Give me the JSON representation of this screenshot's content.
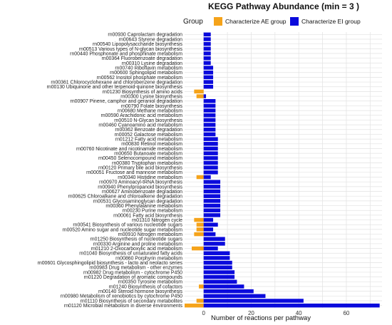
{
  "chart_data": {
    "type": "bar",
    "orientation": "horizontal-diverging",
    "title": "KEGG Pathway Abundance (min = 3 )",
    "xlabel": "Number of reactions per pathway",
    "ylabel": "",
    "xlim": [
      -8,
      75
    ],
    "xticks": [
      0,
      20,
      40,
      60
    ],
    "grid": true,
    "legend_placement": "top-right",
    "legend_title": "Group",
    "colors": {
      "Characterize AE group": "#f5a31a",
      "Characterize EI group": "#0a0adc"
    },
    "categories": [
      "rn00930 Caprolactam degradation",
      "rn00643 Styrene degradation",
      "rn00540 Lipopolysaccharide biosynthesis",
      "rn00513 Various types of N-glycan biosynthesis",
      "rn00440 Phosphonate and phosphinate metabolism",
      "rn00364 Fluorobenzoate degradation",
      "rn00310 Lysine degradation",
      "rn00740 Riboflavin metabolism",
      "rn00600 Sphingolipid metabolism",
      "rn00562 Inositol phosphate metabolism",
      "rn00361 Chlorocyclohexane and chlorobenzene degradation",
      "rn00130 Ubiquinone and other terpenoid-quinone biosynthesis",
      "rn01230 Biosynthesis of amino acids",
      "rn00300 Lysine biosynthesis",
      "rn00907 Pinene, camphor and geraniol degradation",
      "rn00790 Folate biosynthesis",
      "rn00680 Methane metabolism",
      "rn00590 Arachidonic acid metabolism",
      "rn00510 N-Glycan biosynthesis",
      "rn00460 Cyanoamino acid metabolism",
      "rn00362 Benzoate degradation",
      "rn00052 Galactose metabolism",
      "rn01212 Fatty acid metabolism",
      "rn00830 Retinol metabolism",
      "rn00760 Nicotinate and nicotinamide metabolism",
      "rn00650 Butanoate metabolism",
      "rn00450 Selenocompound metabolism",
      "rn00380 Tryptophan metabolism",
      "rn00120 Primary bile acid biosynthesis",
      "rn00051 Fructose and mannose metabolism",
      "rn00340 Histidine metabolism",
      "rn00970 Aminoacyl-tRNA biosynthesis",
      "rn00940 Phenylpropanoid biosynthesis",
      "rn00627 Aminobenzoate degradation",
      "rn00625 Chloroalkane and chloroalkene degradation",
      "rn00531 Glycosaminoglycan degradation",
      "rn00360 Phenylalanine metabolism",
      "rn00230 Purine metabolism",
      "rn00061 Fatty acid biosynthesis",
      "rn01310 Nitrogen cycle",
      "rn00541 Biosynthesis of various nucleotide sugars",
      "rn00520 Amino sugar and nucleotide sugar metabolism",
      "rn00910 Nitrogen metabolism",
      "rn01250 Biosynthesis of nucleotide sugars",
      "rn00330 Arginine and proline metabolism",
      "rn01210 2-Oxocarboxylic acid metabolism",
      "rn01040 Biosynthesis of unsaturated fatty acids",
      "rn00860 Porphyrin metabolism",
      "rn00601 Glycosphingolipid biosynthesis - lacto and neolacto series",
      "rn00983 Drug metabolism - other enzymes",
      "rn00982 Drug metabolism - cytochrome P450",
      "rn01220 Degradation of aromatic compounds",
      "rn00350 Tyrosine metabolism",
      "rn01240 Biosynthesis of cofactors",
      "rn00140 Steroid hormone biosynthesis",
      "rn00980 Metabolism of xenobiotics by cytochrome P450",
      "rn01110 Biosynthesis of secondary metabolites",
      "rn01120 Microbial metabolism in diverse environments"
    ],
    "series": [
      {
        "name": "Characterize AE group",
        "values": [
          0,
          0,
          0,
          0,
          0,
          0,
          0,
          0,
          0,
          0,
          0,
          0,
          -4,
          -3,
          0,
          0,
          0,
          0,
          0,
          0,
          0,
          0,
          0,
          0,
          0,
          0,
          0,
          0,
          0,
          0,
          -3,
          0,
          0,
          0,
          0,
          0,
          0,
          0,
          0,
          -4,
          -3,
          -3,
          -4,
          0,
          0,
          -5,
          0,
          0,
          0,
          0,
          0,
          0,
          0,
          -2,
          0,
          0,
          -3,
          -8
        ]
      },
      {
        "name": "Characterize EI group",
        "values": [
          3,
          3,
          3,
          3,
          3,
          3,
          3,
          4,
          4,
          4,
          4,
          4,
          0,
          1,
          5,
          5,
          5,
          5,
          5,
          5,
          5,
          5,
          6,
          6,
          6,
          6,
          6,
          6,
          6,
          6,
          3,
          7,
          7,
          7,
          7,
          7,
          7,
          7,
          7,
          4,
          6,
          4,
          5,
          9,
          9,
          6,
          11,
          11,
          12,
          12,
          13,
          13,
          14,
          17,
          21,
          26,
          42,
          74
        ]
      }
    ]
  }
}
